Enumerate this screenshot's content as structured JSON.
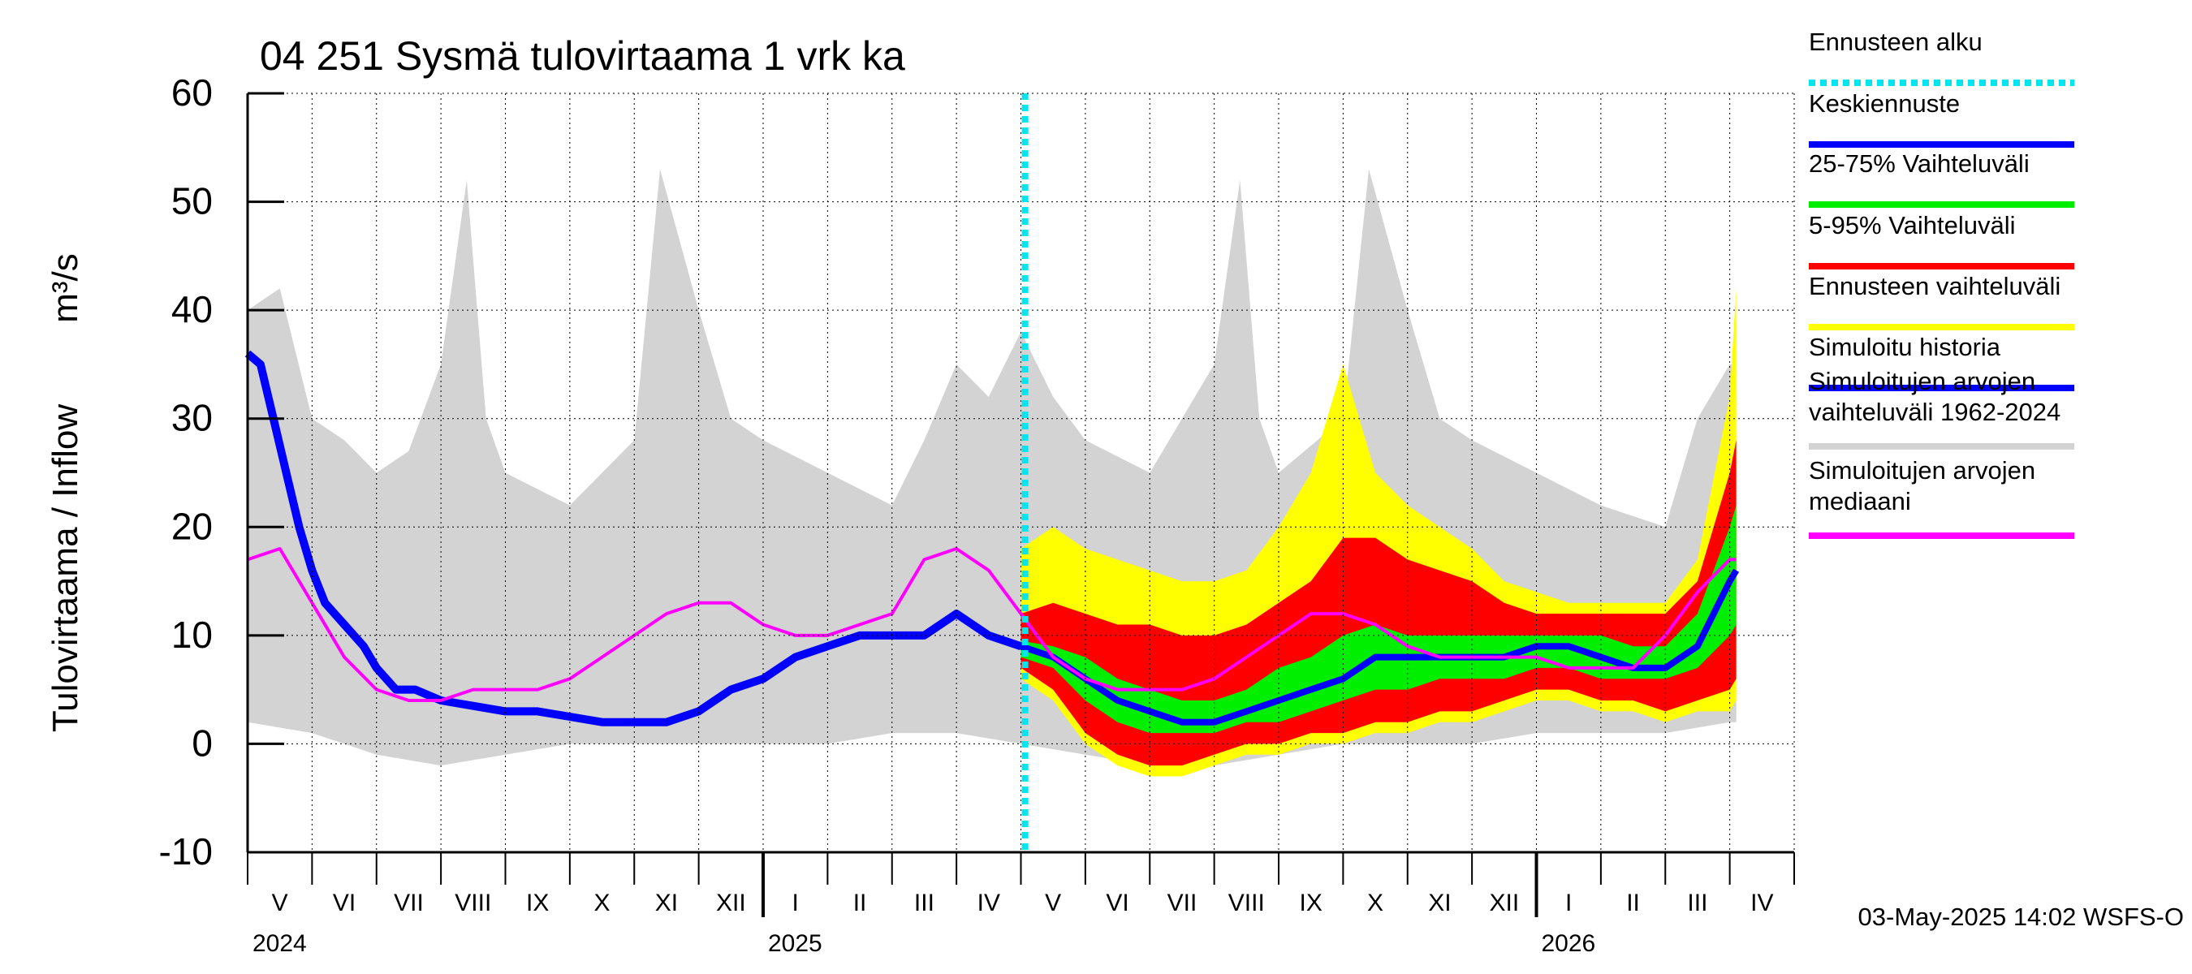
{
  "chart_data": {
    "type": "area",
    "title": "04 251 Sysmä tulovirtaama 1 vrk ka",
    "ylabel_left": "Tulovirtaama / Inflow",
    "ylabel_unit": "m³/s",
    "ylim": [
      -10,
      60
    ],
    "yticks": [
      -10,
      0,
      10,
      20,
      30,
      40,
      50,
      60
    ],
    "grid": true,
    "months": [
      "V",
      "VI",
      "VII",
      "VIII",
      "IX",
      "X",
      "XI",
      "XII",
      "I",
      "II",
      "III",
      "IV",
      "V",
      "VI",
      "VII",
      "VIII",
      "IX",
      "X",
      "XI",
      "XII",
      "I",
      "II",
      "III",
      "IV"
    ],
    "years": [
      "2024",
      "2025",
      "2026"
    ],
    "forecast_start": "2025-05-03",
    "colors": {
      "forecast_start": "#00e5ee",
      "mean_forecast": "#0000ff",
      "p25_75": "#00ee00",
      "p5_95": "#ff0000",
      "forecast_range": "#ffff00",
      "simulated_history": "#0000ff",
      "hist_range": "#d3d3d3",
      "hist_median": "#ff00ff"
    },
    "legend": [
      {
        "label": "Ennusteen alku",
        "color": "#00e5ee",
        "style": "dotted"
      },
      {
        "label": "Keskiennuste",
        "color": "#0000ff",
        "style": "solid"
      },
      {
        "label": "25-75% Vaihteluväli",
        "color": "#00ee00",
        "style": "solid"
      },
      {
        "label": "5-95% Vaihteluväli",
        "color": "#ff0000",
        "style": "solid"
      },
      {
        "label": "Ennusteen vaihteluväli",
        "color": "#ffff00",
        "style": "solid"
      },
      {
        "label": "Simuloitu historia",
        "color": "#0000ff",
        "style": "solid"
      },
      {
        "label": "Simuloitujen arvojen",
        "label2": "vaihteluväli 1962-2024",
        "color": "#d3d3d3",
        "style": "solid"
      },
      {
        "label": "Simuloitujen arvojen",
        "label2": "mediaani",
        "color": "#ff00ff",
        "style": "solid"
      }
    ],
    "series": {
      "simulated_history": [
        [
          0,
          36
        ],
        [
          0.2,
          35
        ],
        [
          0.4,
          30
        ],
        [
          0.6,
          25
        ],
        [
          0.8,
          20
        ],
        [
          1,
          16
        ],
        [
          1.2,
          13
        ],
        [
          1.5,
          11
        ],
        [
          1.8,
          9
        ],
        [
          2,
          7
        ],
        [
          2.3,
          5
        ],
        [
          2.6,
          5
        ],
        [
          3,
          4
        ],
        [
          3.5,
          3.5
        ],
        [
          4,
          3
        ],
        [
          4.5,
          3
        ],
        [
          5,
          2.5
        ],
        [
          5.5,
          2
        ],
        [
          6,
          2
        ],
        [
          6.5,
          2
        ],
        [
          7,
          3
        ],
        [
          7.5,
          5
        ],
        [
          8,
          6
        ],
        [
          8.5,
          8
        ],
        [
          9,
          9
        ],
        [
          9.5,
          10
        ],
        [
          10,
          10
        ],
        [
          10.5,
          10
        ],
        [
          11,
          12
        ],
        [
          11.5,
          10
        ],
        [
          12,
          9
        ]
      ],
      "hist_median": [
        [
          0,
          17
        ],
        [
          0.5,
          18
        ],
        [
          1,
          13
        ],
        [
          1.5,
          8
        ],
        [
          2,
          5
        ],
        [
          2.5,
          4
        ],
        [
          3,
          4
        ],
        [
          3.5,
          5
        ],
        [
          4,
          5
        ],
        [
          4.5,
          5
        ],
        [
          5,
          6
        ],
        [
          5.5,
          8
        ],
        [
          6,
          10
        ],
        [
          6.5,
          12
        ],
        [
          7,
          13
        ],
        [
          7.5,
          13
        ],
        [
          8,
          11
        ],
        [
          8.5,
          10
        ],
        [
          9,
          10
        ],
        [
          9.5,
          11
        ],
        [
          10,
          12
        ],
        [
          10.5,
          17
        ],
        [
          11,
          18
        ],
        [
          11.5,
          16
        ],
        [
          12,
          12
        ],
        [
          12.5,
          8
        ],
        [
          13,
          6
        ],
        [
          13.5,
          5
        ],
        [
          14,
          5
        ],
        [
          14.5,
          5
        ],
        [
          15,
          6
        ],
        [
          15.5,
          8
        ],
        [
          16,
          10
        ],
        [
          16.5,
          12
        ],
        [
          17,
          12
        ],
        [
          17.5,
          11
        ],
        [
          18,
          9
        ],
        [
          18.5,
          8
        ],
        [
          19,
          8
        ],
        [
          19.5,
          8
        ],
        [
          20,
          8
        ],
        [
          20.5,
          7
        ],
        [
          21,
          7
        ],
        [
          21.5,
          7
        ],
        [
          22,
          10
        ],
        [
          22.5,
          14
        ],
        [
          23,
          17
        ],
        [
          23.1,
          17
        ]
      ],
      "mean_forecast": [
        [
          12,
          9
        ],
        [
          12.5,
          8
        ],
        [
          13,
          6
        ],
        [
          13.5,
          4
        ],
        [
          14,
          3
        ],
        [
          14.5,
          2
        ],
        [
          15,
          2
        ],
        [
          15.5,
          3
        ],
        [
          16,
          4
        ],
        [
          16.5,
          5
        ],
        [
          17,
          6
        ],
        [
          17.5,
          8
        ],
        [
          18,
          8
        ],
        [
          18.5,
          8
        ],
        [
          19,
          8
        ],
        [
          19.5,
          8
        ],
        [
          20,
          9
        ],
        [
          20.5,
          9
        ],
        [
          21,
          8
        ],
        [
          21.5,
          7
        ],
        [
          22,
          7
        ],
        [
          22.5,
          9
        ],
        [
          23,
          15
        ],
        [
          23.1,
          16
        ]
      ],
      "p25_band": [
        [
          12,
          8
        ],
        [
          12.5,
          7
        ],
        [
          13,
          4
        ],
        [
          13.5,
          2
        ],
        [
          14,
          1
        ],
        [
          14.5,
          1
        ],
        [
          15,
          1
        ],
        [
          15.5,
          2
        ],
        [
          16,
          2
        ],
        [
          16.5,
          3
        ],
        [
          17,
          4
        ],
        [
          17.5,
          5
        ],
        [
          18,
          5
        ],
        [
          18.5,
          6
        ],
        [
          19,
          6
        ],
        [
          19.5,
          6
        ],
        [
          20,
          7
        ],
        [
          20.5,
          7
        ],
        [
          21,
          6
        ],
        [
          21.5,
          6
        ],
        [
          22,
          6
        ],
        [
          22.5,
          7
        ],
        [
          23,
          10
        ],
        [
          23.1,
          11
        ]
      ],
      "p75_band": [
        [
          12,
          9.5
        ],
        [
          12.5,
          9
        ],
        [
          13,
          8
        ],
        [
          13.5,
          6
        ],
        [
          14,
          5
        ],
        [
          14.5,
          4
        ],
        [
          15,
          4
        ],
        [
          15.5,
          5
        ],
        [
          16,
          7
        ],
        [
          16.5,
          8
        ],
        [
          17,
          10
        ],
        [
          17.5,
          11
        ],
        [
          18,
          10
        ],
        [
          18.5,
          10
        ],
        [
          19,
          10
        ],
        [
          19.5,
          10
        ],
        [
          20,
          10
        ],
        [
          20.5,
          10
        ],
        [
          21,
          10
        ],
        [
          21.5,
          9
        ],
        [
          22,
          9
        ],
        [
          22.5,
          12
        ],
        [
          23,
          20
        ],
        [
          23.1,
          22
        ]
      ],
      "p5_band": [
        [
          12,
          7
        ],
        [
          12.5,
          5
        ],
        [
          13,
          1
        ],
        [
          13.5,
          -1
        ],
        [
          14,
          -2
        ],
        [
          14.5,
          -2
        ],
        [
          15,
          -1
        ],
        [
          15.5,
          0
        ],
        [
          16,
          0
        ],
        [
          16.5,
          1
        ],
        [
          17,
          1
        ],
        [
          17.5,
          2
        ],
        [
          18,
          2
        ],
        [
          18.5,
          3
        ],
        [
          19,
          3
        ],
        [
          19.5,
          4
        ],
        [
          20,
          5
        ],
        [
          20.5,
          5
        ],
        [
          21,
          4
        ],
        [
          21.5,
          4
        ],
        [
          22,
          3
        ],
        [
          22.5,
          4
        ],
        [
          23,
          5
        ],
        [
          23.1,
          6
        ]
      ],
      "p95_band": [
        [
          12,
          12
        ],
        [
          12.5,
          13
        ],
        [
          13,
          12
        ],
        [
          13.5,
          11
        ],
        [
          14,
          11
        ],
        [
          14.5,
          10
        ],
        [
          15,
          10
        ],
        [
          15.5,
          11
        ],
        [
          16,
          13
        ],
        [
          16.5,
          15
        ],
        [
          17,
          19
        ],
        [
          17.5,
          19
        ],
        [
          18,
          17
        ],
        [
          18.5,
          16
        ],
        [
          19,
          15
        ],
        [
          19.5,
          13
        ],
        [
          20,
          12
        ],
        [
          20.5,
          12
        ],
        [
          21,
          12
        ],
        [
          21.5,
          12
        ],
        [
          22,
          12
        ],
        [
          22.5,
          15
        ],
        [
          23,
          25
        ],
        [
          23.1,
          28
        ]
      ],
      "forecast_min": [
        [
          12,
          6
        ],
        [
          12.5,
          4
        ],
        [
          13,
          0
        ],
        [
          13.5,
          -2
        ],
        [
          14,
          -3
        ],
        [
          14.5,
          -3
        ],
        [
          15,
          -2
        ],
        [
          15.5,
          -1
        ],
        [
          16,
          -1
        ],
        [
          16.5,
          0
        ],
        [
          17,
          0
        ],
        [
          17.5,
          1
        ],
        [
          18,
          1
        ],
        [
          18.5,
          2
        ],
        [
          19,
          2
        ],
        [
          19.5,
          3
        ],
        [
          20,
          4
        ],
        [
          20.5,
          4
        ],
        [
          21,
          3
        ],
        [
          21.5,
          3
        ],
        [
          22,
          2
        ],
        [
          22.5,
          3
        ],
        [
          23,
          3
        ],
        [
          23.1,
          4
        ]
      ],
      "forecast_max": [
        [
          12,
          18
        ],
        [
          12.5,
          20
        ],
        [
          13,
          18
        ],
        [
          13.5,
          17
        ],
        [
          14,
          16
        ],
        [
          14.5,
          15
        ],
        [
          15,
          15
        ],
        [
          15.5,
          16
        ],
        [
          16,
          20
        ],
        [
          16.5,
          25
        ],
        [
          17,
          35
        ],
        [
          17.5,
          25
        ],
        [
          18,
          22
        ],
        [
          18.5,
          20
        ],
        [
          19,
          18
        ],
        [
          19.5,
          15
        ],
        [
          20,
          14
        ],
        [
          20.5,
          13
        ],
        [
          21,
          13
        ],
        [
          21.5,
          13
        ],
        [
          22,
          13
        ],
        [
          22.5,
          17
        ],
        [
          23,
          32
        ],
        [
          23.1,
          42
        ]
      ],
      "hist_min": [
        [
          0,
          2
        ],
        [
          1,
          1
        ],
        [
          2,
          -1
        ],
        [
          3,
          -2
        ],
        [
          4,
          -1
        ],
        [
          5,
          0
        ],
        [
          6,
          0
        ],
        [
          7,
          0
        ],
        [
          8,
          0
        ],
        [
          9,
          0
        ],
        [
          10,
          1
        ],
        [
          11,
          1
        ],
        [
          12,
          0
        ],
        [
          13,
          -1
        ],
        [
          14,
          -2
        ],
        [
          15,
          -2
        ],
        [
          16,
          -1
        ],
        [
          17,
          0
        ],
        [
          18,
          0
        ],
        [
          19,
          0
        ],
        [
          20,
          1
        ],
        [
          21,
          1
        ],
        [
          22,
          1
        ],
        [
          23,
          2
        ],
        [
          23.1,
          2
        ]
      ],
      "hist_max": [
        [
          0,
          40
        ],
        [
          0.5,
          42
        ],
        [
          1,
          30
        ],
        [
          1.5,
          28
        ],
        [
          2,
          25
        ],
        [
          2.5,
          27
        ],
        [
          3,
          35
        ],
        [
          3.4,
          52
        ],
        [
          3.7,
          30
        ],
        [
          4,
          25
        ],
        [
          5,
          22
        ],
        [
          6,
          28
        ],
        [
          6.4,
          53
        ],
        [
          7,
          40
        ],
        [
          7.5,
          30
        ],
        [
          8,
          28
        ],
        [
          9,
          25
        ],
        [
          10,
          22
        ],
        [
          10.5,
          28
        ],
        [
          11,
          35
        ],
        [
          11.5,
          32
        ],
        [
          12,
          38
        ],
        [
          12.5,
          32
        ],
        [
          13,
          28
        ],
        [
          14,
          25
        ],
        [
          14.5,
          30
        ],
        [
          15,
          35
        ],
        [
          15.4,
          52
        ],
        [
          15.7,
          30
        ],
        [
          16,
          25
        ],
        [
          17,
          30
        ],
        [
          17.4,
          53
        ],
        [
          18,
          40
        ],
        [
          18.5,
          30
        ],
        [
          19,
          28
        ],
        [
          20,
          25
        ],
        [
          21,
          22
        ],
        [
          22,
          20
        ],
        [
          22.5,
          30
        ],
        [
          23,
          35
        ],
        [
          23.1,
          35
        ]
      ]
    },
    "footer": "03-May-2025 14:02 WSFS-O"
  }
}
